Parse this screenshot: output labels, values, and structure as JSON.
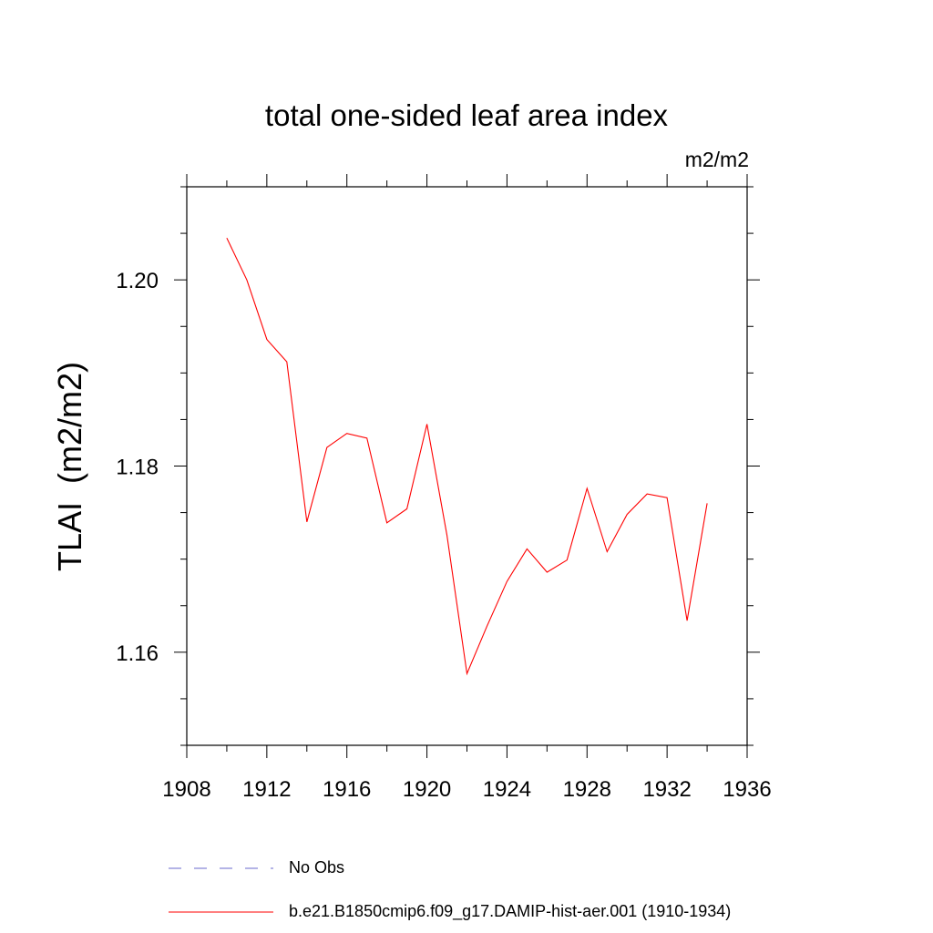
{
  "chart_data": {
    "type": "line",
    "title": "total one-sided leaf area index",
    "units": "m2/m2",
    "ylabel": "TLAI  (m2/m2)",
    "xlabel": "",
    "xlim": [
      1908,
      1936
    ],
    "ylim": [
      1.15,
      1.21
    ],
    "x_ticks": [
      1908,
      1912,
      1916,
      1920,
      1924,
      1928,
      1932,
      1936
    ],
    "y_ticks": [
      1.16,
      1.18,
      1.2
    ],
    "y_tick_labels": [
      "1.16",
      "1.18",
      "1.20"
    ],
    "grid": false,
    "legend": [
      {
        "label": "No Obs",
        "color": "#6a6acd",
        "style": "dashed"
      },
      {
        "label": "b.e21.B1850cmip6.f09_g17.DAMIP-hist-aer.001 (1910-1934)",
        "color": "#ff0000",
        "style": "solid"
      }
    ],
    "series": [
      {
        "name": "b.e21.B1850cmip6.f09_g17.DAMIP-hist-aer.001 (1910-1934)",
        "color": "#ff0000",
        "x": [
          1910,
          1911,
          1912,
          1913,
          1914,
          1915,
          1916,
          1917,
          1918,
          1919,
          1920,
          1921,
          1922,
          1923,
          1924,
          1925,
          1926,
          1927,
          1928,
          1929,
          1930,
          1931,
          1932,
          1933,
          1934
        ],
        "y": [
          1.2045,
          1.2,
          1.1936,
          1.1912,
          1.174,
          1.182,
          1.1835,
          1.183,
          1.1739,
          1.1754,
          1.1845,
          1.1726,
          1.1577,
          1.1628,
          1.1676,
          1.1711,
          1.1686,
          1.1699,
          1.1776,
          1.1708,
          1.1748,
          1.177,
          1.1766,
          1.1634,
          1.176
        ]
      }
    ]
  }
}
